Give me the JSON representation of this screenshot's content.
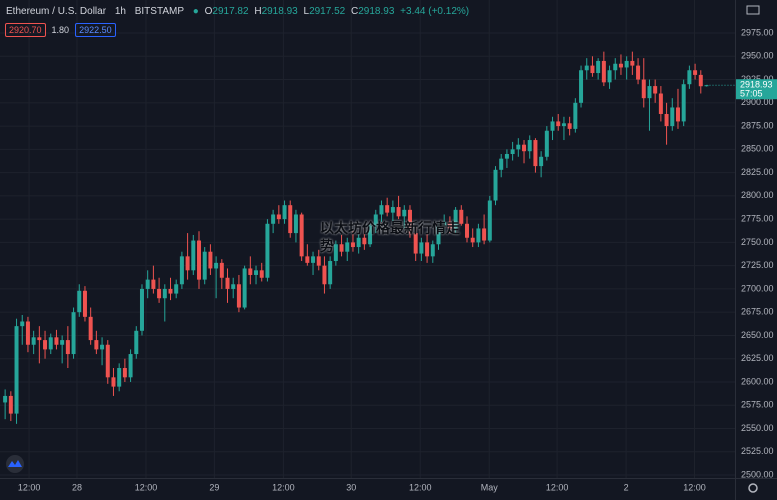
{
  "chart_data": {
    "type": "candlestick",
    "title": "Ethereum / U.S. Dollar",
    "interval": "1h",
    "exchange": "BITSTAMP",
    "ohlc_labels": [
      "O",
      "H",
      "L",
      "C"
    ],
    "change_label": "+3.44 (+0.12%)",
    "bid": "2920.70",
    "spread": "1.80",
    "ask": "2922.50",
    "countdown": "57:05",
    "watermark": "以太坊价格最新行情走势",
    "up_color": "#26a69a",
    "down_color": "#ef5350",
    "grid": true,
    "xlim": [
      -0.9,
      128
    ],
    "ylim": [
      2496.8,
      3010.5
    ],
    "xticks": [
      {
        "value": 4.2,
        "label": "12:00"
      },
      {
        "value": 12.6,
        "label": "28"
      },
      {
        "value": 24.7,
        "label": "12:00"
      },
      {
        "value": 36.7,
        "label": "29"
      },
      {
        "value": 48.8,
        "label": "12:00"
      },
      {
        "value": 60.7,
        "label": "30"
      },
      {
        "value": 72.8,
        "label": "12:00"
      },
      {
        "value": 84.9,
        "label": "May"
      },
      {
        "value": 96.8,
        "label": "12:00"
      },
      {
        "value": 108.9,
        "label": "2"
      },
      {
        "value": 120.9,
        "label": "12:00"
      }
    ],
    "yticks": [
      {
        "value": 2500,
        "label": "2500.00"
      },
      {
        "value": 2525,
        "label": "2525.00"
      },
      {
        "value": 2550,
        "label": "2550.00"
      },
      {
        "value": 2575,
        "label": "2575.00"
      },
      {
        "value": 2600,
        "label": "2600.00"
      },
      {
        "value": 2625,
        "label": "2625.00"
      },
      {
        "value": 2650,
        "label": "2650.00"
      },
      {
        "value": 2675,
        "label": "2675.00"
      },
      {
        "value": 2700,
        "label": "2700.00"
      },
      {
        "value": 2725,
        "label": "2725.00"
      },
      {
        "value": 2750,
        "label": "2750.00"
      },
      {
        "value": 2775,
        "label": "2775.00"
      },
      {
        "value": 2800,
        "label": "2800.00"
      },
      {
        "value": 2825,
        "label": "2825.00"
      },
      {
        "value": 2850,
        "label": "2850.00"
      },
      {
        "value": 2875,
        "label": "2875.00"
      },
      {
        "value": 2900,
        "label": "2900.00"
      },
      {
        "value": 2925,
        "label": "2925.00"
      },
      {
        "value": 2950,
        "label": "2950.00"
      },
      {
        "value": 2975,
        "label": "2975.00"
      }
    ],
    "open": [
      2578,
      2585,
      2566,
      2660,
      2665,
      2640,
      2648,
      2645,
      2635,
      2648,
      2640,
      2645,
      2630,
      2675,
      2698,
      2670,
      2645,
      2635,
      2640,
      2605,
      2595,
      2615,
      2605,
      2630,
      2655,
      2700,
      2710,
      2700,
      2690,
      2700,
      2695,
      2705,
      2735,
      2720,
      2752,
      2710,
      2740,
      2722,
      2728,
      2712,
      2700,
      2705,
      2680,
      2722,
      2715,
      2720,
      2712,
      2770,
      2780,
      2775,
      2790,
      2760,
      2780,
      2735,
      2728,
      2735,
      2725,
      2705,
      2730,
      2748,
      2740,
      2750,
      2745,
      2755,
      2748,
      2768,
      2780,
      2790,
      2782,
      2788,
      2778,
      2785,
      2760,
      2738,
      2750,
      2735,
      2748,
      2768,
      2772,
      2765,
      2785,
      2770,
      2755,
      2750,
      2765,
      2752,
      2795,
      2828,
      2840,
      2845,
      2850,
      2855,
      2848,
      2860,
      2832,
      2842,
      2870,
      2880,
      2875,
      2878,
      2872,
      2900,
      2935,
      2940,
      2932,
      2945,
      2922,
      2935,
      2942,
      2938,
      2945,
      2940,
      2925,
      2905,
      2918,
      2910,
      2888,
      2875,
      2895,
      2880,
      2920,
      2935,
      2930,
      2917.82
    ],
    "high": [
      2592,
      2590,
      2668,
      2672,
      2670,
      2655,
      2660,
      2655,
      2652,
      2656,
      2650,
      2660,
      2680,
      2705,
      2703,
      2680,
      2655,
      2648,
      2645,
      2615,
      2620,
      2625,
      2635,
      2660,
      2705,
      2720,
      2725,
      2712,
      2705,
      2712,
      2710,
      2740,
      2760,
      2758,
      2762,
      2745,
      2748,
      2735,
      2732,
      2722,
      2712,
      2715,
      2725,
      2735,
      2725,
      2728,
      2775,
      2785,
      2790,
      2795,
      2795,
      2785,
      2782,
      2748,
      2740,
      2742,
      2735,
      2735,
      2752,
      2758,
      2755,
      2762,
      2760,
      2765,
      2772,
      2785,
      2795,
      2798,
      2795,
      2800,
      2790,
      2790,
      2768,
      2755,
      2760,
      2752,
      2772,
      2780,
      2778,
      2788,
      2790,
      2778,
      2765,
      2770,
      2780,
      2800,
      2832,
      2845,
      2850,
      2858,
      2862,
      2860,
      2865,
      2862,
      2848,
      2875,
      2885,
      2888,
      2885,
      2885,
      2905,
      2940,
      2948,
      2950,
      2948,
      2955,
      2940,
      2948,
      2952,
      2950,
      2955,
      2948,
      2948,
      2925,
      2925,
      2918,
      2900,
      2905,
      2915,
      2925,
      2940,
      2942,
      2935,
      2918.93
    ],
    "low": [
      2560,
      2558,
      2555,
      2640,
      2632,
      2630,
      2620,
      2625,
      2630,
      2635,
      2620,
      2615,
      2625,
      2670,
      2665,
      2640,
      2630,
      2618,
      2598,
      2585,
      2590,
      2600,
      2600,
      2625,
      2650,
      2690,
      2695,
      2685,
      2665,
      2688,
      2690,
      2700,
      2710,
      2715,
      2700,
      2705,
      2715,
      2690,
      2700,
      2685,
      2690,
      2675,
      2678,
      2705,
      2705,
      2708,
      2708,
      2760,
      2770,
      2770,
      2755,
      2750,
      2730,
      2725,
      2715,
      2720,
      2695,
      2700,
      2725,
      2735,
      2730,
      2740,
      2738,
      2742,
      2745,
      2760,
      2772,
      2778,
      2770,
      2775,
      2765,
      2755,
      2730,
      2730,
      2728,
      2728,
      2742,
      2760,
      2760,
      2760,
      2768,
      2750,
      2745,
      2745,
      2748,
      2750,
      2790,
      2820,
      2830,
      2838,
      2842,
      2835,
      2840,
      2825,
      2820,
      2838,
      2860,
      2870,
      2860,
      2865,
      2868,
      2895,
      2925,
      2928,
      2925,
      2918,
      2915,
      2925,
      2930,
      2925,
      2930,
      2920,
      2895,
      2870,
      2900,
      2880,
      2855,
      2870,
      2872,
      2875,
      2915,
      2925,
      2910,
      2917.52
    ],
    "close": [
      2585,
      2566,
      2660,
      2665,
      2640,
      2648,
      2645,
      2635,
      2648,
      2640,
      2645,
      2630,
      2675,
      2698,
      2670,
      2645,
      2635,
      2640,
      2605,
      2595,
      2615,
      2605,
      2630,
      2655,
      2700,
      2710,
      2700,
      2690,
      2700,
      2695,
      2705,
      2735,
      2720,
      2752,
      2710,
      2740,
      2722,
      2728,
      2712,
      2700,
      2705,
      2680,
      2722,
      2715,
      2720,
      2712,
      2770,
      2780,
      2775,
      2790,
      2760,
      2780,
      2735,
      2728,
      2735,
      2725,
      2705,
      2730,
      2748,
      2740,
      2750,
      2745,
      2755,
      2748,
      2768,
      2780,
      2790,
      2782,
      2788,
      2778,
      2785,
      2760,
      2738,
      2750,
      2735,
      2748,
      2768,
      2772,
      2765,
      2785,
      2770,
      2755,
      2750,
      2765,
      2752,
      2795,
      2828,
      2840,
      2845,
      2850,
      2855,
      2848,
      2860,
      2832,
      2842,
      2870,
      2880,
      2875,
      2878,
      2872,
      2900,
      2935,
      2940,
      2932,
      2945,
      2922,
      2935,
      2942,
      2938,
      2945,
      2940,
      2925,
      2905,
      2918,
      2910,
      2888,
      2875,
      2895,
      2880,
      2920,
      2935,
      2930,
      2917.82,
      2918.93
    ]
  }
}
